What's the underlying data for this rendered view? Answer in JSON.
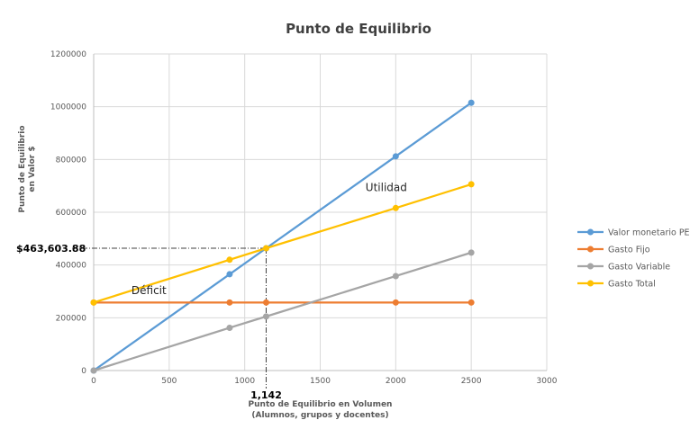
{
  "chart_data": {
    "type": "line",
    "title": "Punto de Equilibrio",
    "xlabel": [
      "Punto de Equilibrio en Volumen",
      "(Alumnos, grupos y docentes)"
    ],
    "ylabel": [
      "Punto de Equilibrio",
      "en Valor $"
    ],
    "xlim": [
      0,
      3000
    ],
    "ylim": [
      0,
      1200000
    ],
    "x_ticks": [
      "0",
      "500",
      "1000",
      "1500",
      "2000",
      "2500",
      "3000"
    ],
    "y_ticks": [
      "0",
      "200000",
      "400000",
      "600000",
      "800000",
      "1000000",
      "1200000"
    ],
    "grid": "vertical and horizontal",
    "legend_position": "right",
    "series": [
      {
        "name": "Valor monetario PE",
        "color": "#5B9BD5",
        "points": [
          [
            0,
            0
          ],
          [
            900,
            365000
          ],
          [
            1142,
            463604
          ],
          [
            2000,
            812000
          ],
          [
            2500,
            1015000
          ]
        ]
      },
      {
        "name": "Gasto Fijo",
        "color": "#ED7D31",
        "points": [
          [
            0,
            258000
          ],
          [
            900,
            258000
          ],
          [
            1142,
            258000
          ],
          [
            2000,
            258000
          ],
          [
            2500,
            258000
          ]
        ]
      },
      {
        "name": "Gasto Variable",
        "color": "#A5A5A5",
        "points": [
          [
            0,
            0
          ],
          [
            900,
            162000
          ],
          [
            1142,
            205000
          ],
          [
            2000,
            358000
          ],
          [
            2500,
            447000
          ]
        ]
      },
      {
        "name": "Gasto Total",
        "color": "#FFC000",
        "points": [
          [
            0,
            258000
          ],
          [
            900,
            420000
          ],
          [
            1142,
            463604
          ],
          [
            2000,
            616000
          ],
          [
            2500,
            706000
          ]
        ]
      }
    ],
    "break_even": {
      "x": 1142,
      "y": 463603.88,
      "x_label": "1,142",
      "y_label": "$463,603.88"
    },
    "annotations": [
      {
        "text": "Utilidad",
        "x": 1800,
        "y": 680000
      },
      {
        "text": "Déficit",
        "x": 250,
        "y": 290000
      }
    ]
  }
}
